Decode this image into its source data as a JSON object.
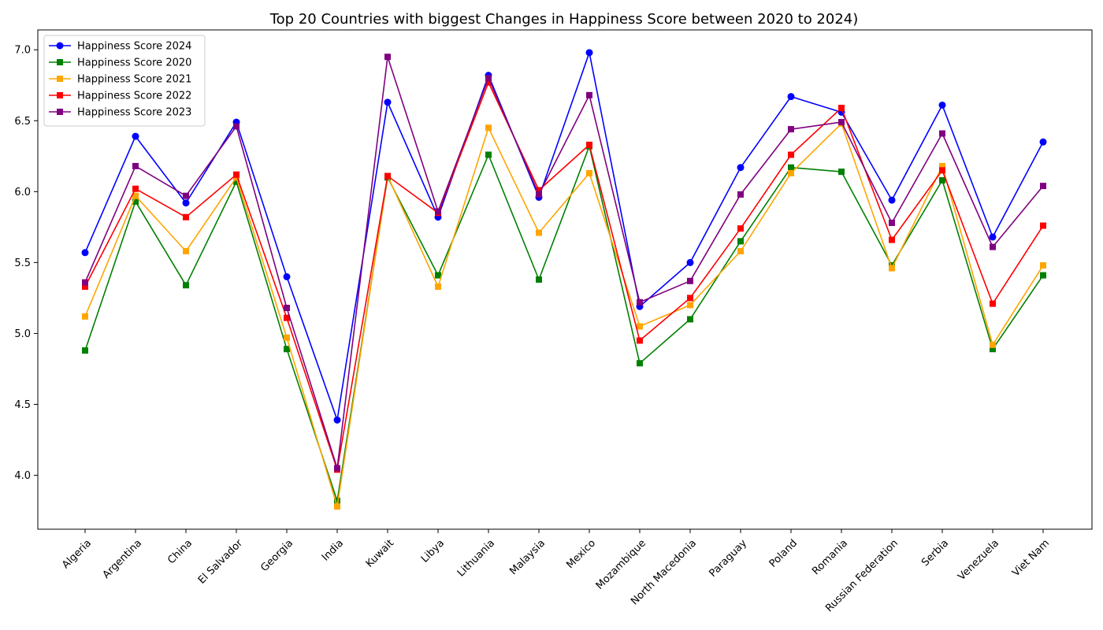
{
  "chart_data": {
    "type": "line",
    "title": "Top 20 Countries with biggest Changes in Happiness Score between 2020 to 2024)",
    "xlabel": "",
    "ylabel": "",
    "ylim": [
      3.62,
      7.14
    ],
    "yticks": [
      "4.0",
      "4.5",
      "5.0",
      "5.5",
      "6.0",
      "6.5",
      "7.0"
    ],
    "grid": false,
    "legend_position": "top-left",
    "categories": [
      "Algeria",
      "Argentina",
      "China",
      "El Salvador",
      "Georgia",
      "India",
      "Kuwait",
      "Libya",
      "Lithuania",
      "Malaysia",
      "Mexico",
      "Mozambique",
      "North Macedonia",
      "Paraguay",
      "Poland",
      "Romania",
      "Russian Federation",
      "Serbia",
      "Venezuela",
      "Viet Nam"
    ],
    "series": [
      {
        "name": "Happiness Score 2024",
        "color": "#0000ff",
        "marker": "circle",
        "values": [
          5.57,
          6.39,
          5.92,
          6.49,
          5.4,
          4.39,
          6.63,
          5.82,
          6.82,
          5.96,
          6.98,
          5.19,
          5.5,
          6.17,
          6.67,
          6.56,
          5.94,
          6.61,
          5.68,
          6.35
        ]
      },
      {
        "name": "Happiness Score 2020",
        "color": "#008000",
        "marker": "square",
        "values": [
          4.88,
          5.93,
          5.34,
          6.07,
          4.89,
          3.82,
          6.1,
          5.41,
          6.26,
          5.38,
          6.32,
          4.79,
          5.1,
          5.65,
          6.17,
          6.14,
          5.48,
          6.08,
          4.89,
          5.41
        ]
      },
      {
        "name": "Happiness Score 2021",
        "color": "#ffa500",
        "marker": "square",
        "values": [
          5.12,
          5.97,
          5.58,
          6.1,
          4.97,
          3.78,
          6.11,
          5.33,
          6.45,
          5.71,
          6.13,
          5.05,
          5.2,
          5.58,
          6.13,
          6.48,
          5.46,
          6.18,
          4.92,
          5.48
        ]
      },
      {
        "name": "Happiness Score 2022",
        "color": "#ff0000",
        "marker": "square",
        "values": [
          5.33,
          6.02,
          5.82,
          6.12,
          5.11,
          4.04,
          6.11,
          5.85,
          6.77,
          6.01,
          6.33,
          4.95,
          5.25,
          5.74,
          6.26,
          6.59,
          5.66,
          6.15,
          5.21,
          5.76
        ]
      },
      {
        "name": "Happiness Score 2023",
        "color": "#800080",
        "marker": "square",
        "values": [
          5.36,
          6.18,
          5.97,
          6.46,
          5.18,
          4.05,
          6.95,
          5.86,
          6.8,
          5.98,
          6.68,
          5.22,
          5.37,
          5.98,
          6.44,
          6.49,
          5.78,
          6.41,
          5.61,
          6.04
        ]
      }
    ]
  }
}
